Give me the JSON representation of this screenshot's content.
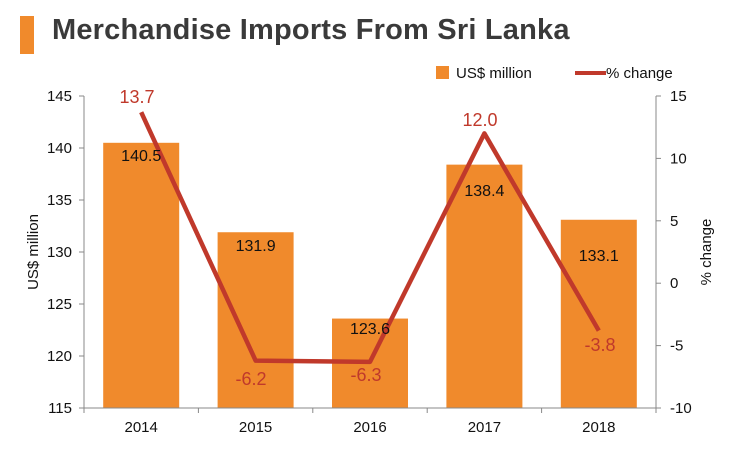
{
  "header": {
    "title": "Merchandise Imports From Sri Lanka"
  },
  "chart_data": {
    "type": "bar",
    "categories": [
      "2014",
      "2015",
      "2016",
      "2017",
      "2018"
    ],
    "series": [
      {
        "name": "US$ million",
        "type": "bar",
        "axis": "left",
        "values": [
          140.5,
          131.9,
          123.6,
          138.4,
          133.1
        ],
        "color": "#f08a2c"
      },
      {
        "name": "% change",
        "type": "line",
        "axis": "right",
        "values": [
          13.7,
          -6.2,
          -6.3,
          12.0,
          -3.8
        ],
        "color": "#c0392b"
      }
    ],
    "ylabel": "US$ million",
    "ylabel_right": "% change",
    "ylim": [
      115,
      145
    ],
    "yticks": [
      "115",
      "120",
      "125",
      "130",
      "135",
      "140",
      "145"
    ],
    "ylim_right": [
      -10,
      15
    ],
    "yticks_right": [
      "-10",
      "-5",
      "0",
      "5",
      "10",
      "15"
    ],
    "bar_labels": [
      "140.5",
      "131.9",
      "123.6",
      "138.4",
      "133.1"
    ],
    "line_labels": [
      "13.7",
      "-6.2",
      "-6.3",
      "12.0",
      "-3.8"
    ],
    "legend": {
      "position": "top-right",
      "entries": [
        "US$ million",
        "% change"
      ]
    },
    "grid": false
  }
}
